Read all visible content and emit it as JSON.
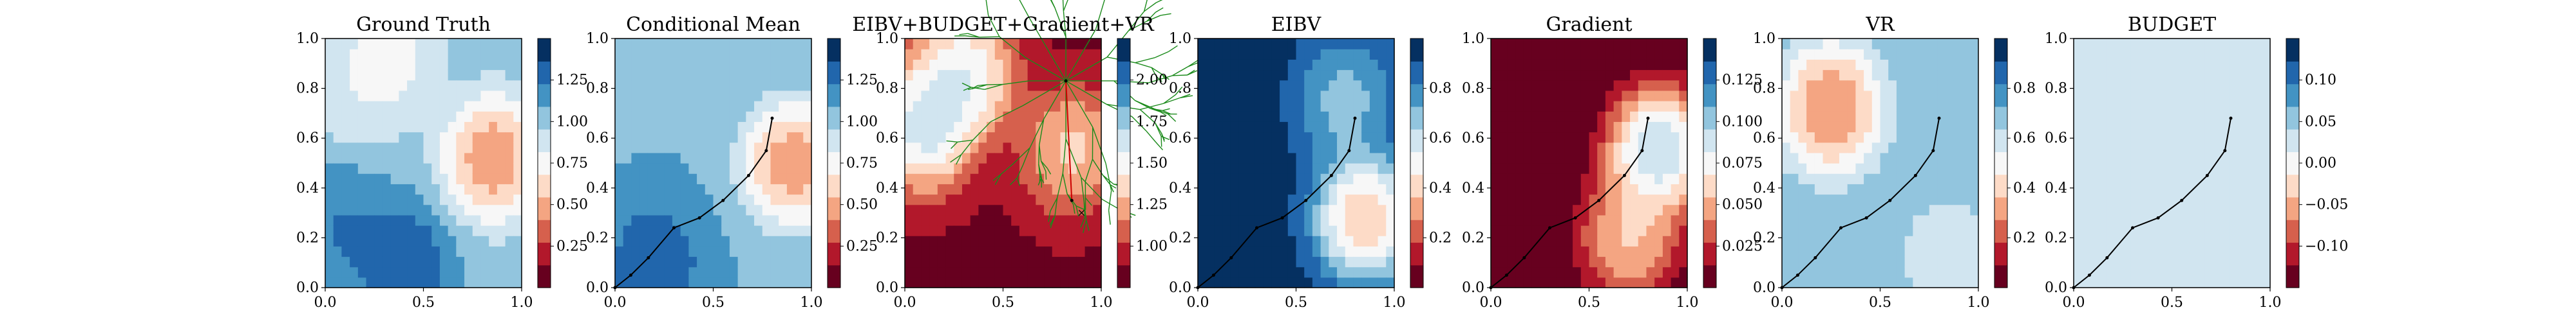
{
  "figure": {
    "panels": [
      {
        "key": "ground_truth",
        "title": "Ground Truth"
      },
      {
        "key": "conditional_mean",
        "title": "Conditional Mean"
      },
      {
        "key": "combined",
        "title": "EIBV+BUDGET+Gradient+VR"
      },
      {
        "key": "eibv",
        "title": "EIBV"
      },
      {
        "key": "gradient",
        "title": "Gradient"
      },
      {
        "key": "vr",
        "title": "VR"
      },
      {
        "key": "budget",
        "title": "BUDGET"
      }
    ]
  },
  "chart_data": [
    {
      "type": "heatmap",
      "title": "Ground Truth",
      "xlim": [
        0,
        1
      ],
      "ylim": [
        0,
        1
      ],
      "x_ticks": [
        "0.0",
        "0.5",
        "1.0"
      ],
      "y_ticks": [
        "0.0",
        "0.2",
        "0.4",
        "0.6",
        "0.8",
        "1.0"
      ],
      "colorbar": {
        "min": 0.0,
        "max": 1.45,
        "ticks": [
          "0.25",
          "0.50",
          "0.75",
          "1.00",
          "1.25"
        ]
      },
      "field_centers": [
        {
          "x": 0.85,
          "y": 0.52,
          "value": 0.1
        },
        {
          "x": 0.33,
          "y": 0.95,
          "value": 0.6
        },
        {
          "x": 0.18,
          "y": 0.8,
          "value": 0.7
        },
        {
          "x": 0.4,
          "y": 0.1,
          "value": 1.45
        },
        {
          "x": 0.08,
          "y": 0.25,
          "value": 1.3
        }
      ],
      "background_value": 1.0
    },
    {
      "type": "heatmap",
      "title": "Conditional Mean",
      "xlim": [
        0,
        1
      ],
      "ylim": [
        0,
        1
      ],
      "x_ticks": [
        "0.0",
        "0.5",
        "1.0"
      ],
      "y_ticks": [
        "0.0",
        "0.2",
        "0.4",
        "0.6",
        "0.8",
        "1.0"
      ],
      "colorbar": {
        "min": 0.0,
        "max": 1.45,
        "ticks": [
          "0.25",
          "0.50",
          "0.75",
          "1.00",
          "1.25"
        ]
      },
      "field_centers": [
        {
          "x": 0.9,
          "y": 0.5,
          "value": 0.1
        },
        {
          "x": 0.2,
          "y": 0.1,
          "value": 1.4
        }
      ],
      "background_value": 1.05,
      "path": [
        [
          0,
          0
        ],
        [
          0.08,
          0.05
        ],
        [
          0.17,
          0.12
        ],
        [
          0.3,
          0.24
        ],
        [
          0.43,
          0.28
        ],
        [
          0.55,
          0.35
        ],
        [
          0.68,
          0.45
        ],
        [
          0.77,
          0.55
        ],
        [
          0.8,
          0.68
        ]
      ]
    },
    {
      "type": "heatmap",
      "title": "EIBV+BUDGET+Gradient+VR",
      "xlim": [
        0,
        1
      ],
      "ylim": [
        0,
        1
      ],
      "x_ticks": [
        "0.0",
        "0.5",
        "1.0"
      ],
      "y_ticks": [
        "0.0",
        "0.2",
        "0.4",
        "0.6",
        "0.8",
        "1.0"
      ],
      "colorbar": {
        "min": 0.9,
        "max": 2.15,
        "ticks": [
          "1.00",
          "1.25",
          "1.50",
          "1.75",
          "2.00"
        ]
      },
      "field_centers": [
        {
          "x": 0.1,
          "y": 0.65,
          "value": 2.0
        },
        {
          "x": 0.3,
          "y": 0.85,
          "value": 1.9
        },
        {
          "x": 0.85,
          "y": 0.55,
          "value": 1.6
        }
      ],
      "background_value": 1.0,
      "tree_root": [
        0.82,
        0.83
      ],
      "path": [
        [
          0.82,
          0.83
        ],
        [
          0.85,
          0.35
        ]
      ],
      "marker": [
        0.9,
        0.3
      ]
    },
    {
      "type": "heatmap",
      "title": "EIBV",
      "xlim": [
        0,
        1
      ],
      "ylim": [
        0,
        1
      ],
      "x_ticks": [
        "0.0",
        "0.5",
        "1.0"
      ],
      "y_ticks": [
        "0.0",
        "0.2",
        "0.4",
        "0.6",
        "0.8",
        "1.0"
      ],
      "colorbar": {
        "min": 0.0,
        "max": 1.0,
        "ticks": [
          "0.2",
          "0.4",
          "0.6",
          "0.8"
        ]
      },
      "field_centers": [
        {
          "x": 0.85,
          "y": 0.28,
          "value": 0.05
        },
        {
          "x": 0.75,
          "y": 0.75,
          "value": 0.55
        }
      ],
      "background_value": 0.95,
      "path": [
        [
          0,
          0
        ],
        [
          0.08,
          0.05
        ],
        [
          0.17,
          0.12
        ],
        [
          0.3,
          0.24
        ],
        [
          0.43,
          0.28
        ],
        [
          0.55,
          0.35
        ],
        [
          0.68,
          0.45
        ],
        [
          0.77,
          0.55
        ],
        [
          0.8,
          0.68
        ]
      ]
    },
    {
      "type": "heatmap",
      "title": "Gradient",
      "xlim": [
        0,
        1
      ],
      "ylim": [
        0,
        1
      ],
      "x_ticks": [
        "0.0",
        "0.5",
        "1.0"
      ],
      "y_ticks": [
        "0.0",
        "0.2",
        "0.4",
        "0.6",
        "0.8",
        "1.0"
      ],
      "colorbar": {
        "min": 0.0,
        "max": 0.14,
        "ticks": [
          "0.025",
          "0.050",
          "0.075",
          "0.100",
          "0.125"
        ]
      },
      "field_centers": [
        {
          "x": 0.85,
          "y": 0.55,
          "value": 0.14
        },
        {
          "x": 0.7,
          "y": 0.2,
          "value": 0.08
        }
      ],
      "background_value": 0.0,
      "path": [
        [
          0,
          0
        ],
        [
          0.08,
          0.05
        ],
        [
          0.17,
          0.12
        ],
        [
          0.3,
          0.24
        ],
        [
          0.43,
          0.28
        ],
        [
          0.55,
          0.35
        ],
        [
          0.68,
          0.45
        ],
        [
          0.77,
          0.55
        ],
        [
          0.8,
          0.68
        ]
      ]
    },
    {
      "type": "heatmap",
      "title": "VR",
      "xlim": [
        0,
        1
      ],
      "ylim": [
        0,
        1
      ],
      "x_ticks": [
        "0.0",
        "0.5",
        "1.0"
      ],
      "y_ticks": [
        "0.0",
        "0.2",
        "0.4",
        "0.6",
        "0.8",
        "1.0"
      ],
      "colorbar": {
        "min": 0.0,
        "max": 1.0,
        "ticks": [
          "0.2",
          "0.4",
          "0.6",
          "0.8"
        ]
      },
      "field_centers": [
        {
          "x": 0.25,
          "y": 0.72,
          "value": 0.02
        },
        {
          "x": 0.85,
          "y": 0.12,
          "value": 0.5
        }
      ],
      "background_value": 0.7,
      "path": [
        [
          0,
          0
        ],
        [
          0.08,
          0.05
        ],
        [
          0.17,
          0.12
        ],
        [
          0.3,
          0.24
        ],
        [
          0.43,
          0.28
        ],
        [
          0.55,
          0.35
        ],
        [
          0.68,
          0.45
        ],
        [
          0.77,
          0.55
        ],
        [
          0.8,
          0.68
        ]
      ]
    },
    {
      "type": "heatmap",
      "title": "BUDGET",
      "xlim": [
        0,
        1
      ],
      "ylim": [
        0,
        1
      ],
      "x_ticks": [
        "0.0",
        "0.5",
        "1.0"
      ],
      "y_ticks": [
        "0.0",
        "0.2",
        "0.4",
        "0.6",
        "0.8",
        "1.0"
      ],
      "colorbar": {
        "min": -0.1,
        "max": 0.1,
        "ticks": [
          "−0.10",
          "−0.05",
          "0.00",
          "0.05",
          "0.10"
        ]
      },
      "uniform_value": 0.0,
      "path": [
        [
          0,
          0
        ],
        [
          0.08,
          0.05
        ],
        [
          0.17,
          0.12
        ],
        [
          0.3,
          0.24
        ],
        [
          0.43,
          0.28
        ],
        [
          0.55,
          0.35
        ],
        [
          0.68,
          0.45
        ],
        [
          0.77,
          0.55
        ],
        [
          0.8,
          0.68
        ]
      ]
    }
  ]
}
